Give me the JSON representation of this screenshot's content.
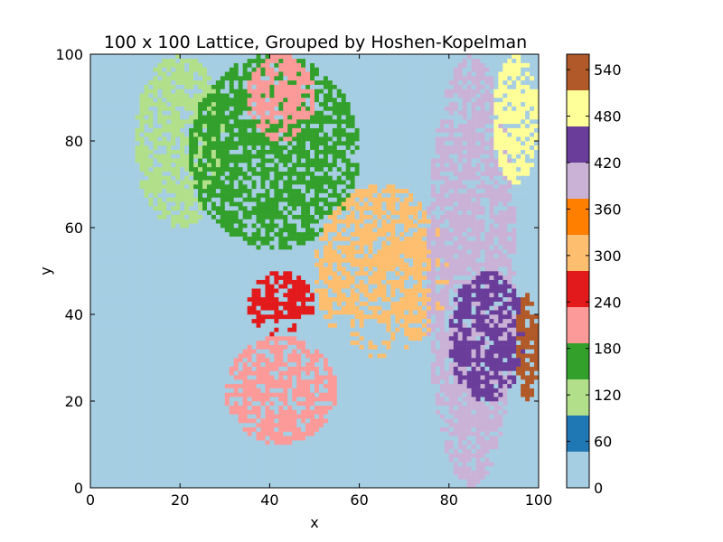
{
  "chart_data": {
    "type": "heatmap",
    "title": "100 x 100 Lattice, Grouped by Hoshen-Kopelman",
    "xlabel": "x",
    "ylabel": "y",
    "xlim": [
      0,
      100
    ],
    "ylim": [
      0,
      100
    ],
    "grid": false,
    "x_ticks": [
      "0",
      "20",
      "40",
      "60",
      "80",
      "100"
    ],
    "y_ticks": [
      "0",
      "20",
      "40",
      "60",
      "80",
      "100"
    ],
    "colorbar": {
      "range": [
        0,
        560
      ],
      "ticks": [
        "0",
        "60",
        "120",
        "180",
        "240",
        "300",
        "360",
        "420",
        "480",
        "540"
      ],
      "colormap": "Paired",
      "colors": [
        "#a6cee3",
        "#1f78b4",
        "#b2df8a",
        "#33a02c",
        "#fb9a99",
        "#e31a1c",
        "#fdbf6f",
        "#ff7f00",
        "#cab2d6",
        "#6a3d9a",
        "#ffff99",
        "#b15928"
      ]
    },
    "cluster_regions": [
      {
        "label_value": 20,
        "x": [
          0,
          30
        ],
        "y": [
          0,
          100
        ]
      },
      {
        "label_value": 130,
        "x": [
          10,
          30
        ],
        "y": [
          60,
          100
        ]
      },
      {
        "label_value": 170,
        "x": [
          22,
          60
        ],
        "y": [
          55,
          100
        ]
      },
      {
        "label_value": 230,
        "x": [
          35,
          50
        ],
        "y": [
          80,
          100
        ]
      },
      {
        "label_value": 320,
        "x": [
          50,
          80
        ],
        "y": [
          30,
          70
        ]
      },
      {
        "label_value": 250,
        "x": [
          35,
          50
        ],
        "y": [
          35,
          50
        ]
      },
      {
        "label_value": 40,
        "x": [
          25,
          80
        ],
        "y": [
          0,
          40
        ]
      },
      {
        "label_value": 200,
        "x": [
          30,
          55
        ],
        "y": [
          10,
          35
        ]
      },
      {
        "label_value": 410,
        "x": [
          75,
          95
        ],
        "y": [
          0,
          100
        ]
      },
      {
        "label_value": 440,
        "x": [
          80,
          97
        ],
        "y": [
          20,
          50
        ]
      },
      {
        "label_value": 510,
        "x": [
          90,
          100
        ],
        "y": [
          70,
          100
        ]
      },
      {
        "label_value": 560,
        "x": [
          95,
          100
        ],
        "y": [
          20,
          45
        ]
      }
    ]
  }
}
